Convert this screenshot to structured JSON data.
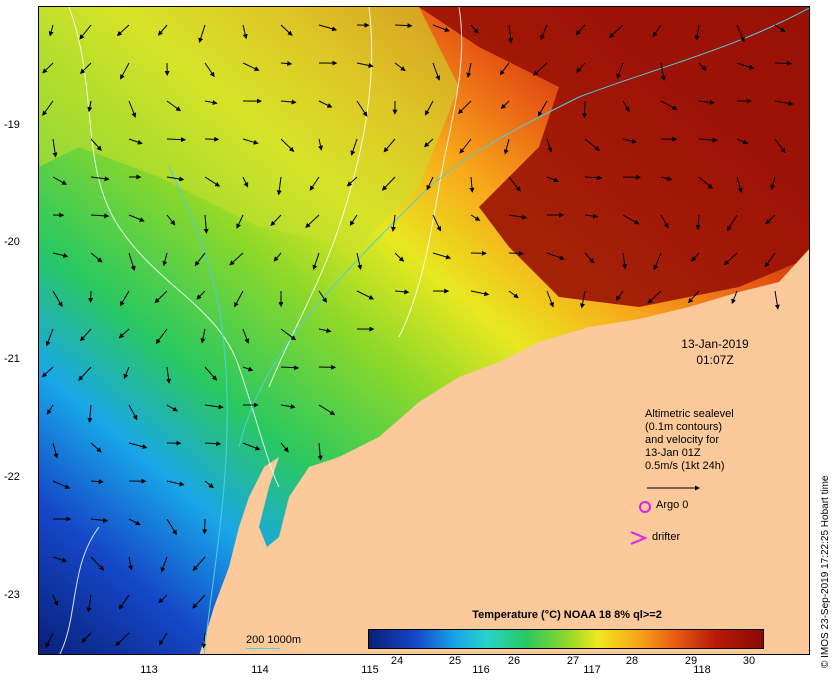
{
  "map": {
    "date": "13-Jan-2019",
    "time": "01:07Z",
    "lat_ticks": [
      "-19",
      "-20",
      "-21",
      "-22",
      "-23"
    ],
    "lon_ticks": [
      "113",
      "114",
      "115",
      "116",
      "117",
      "118"
    ],
    "sealevel_note": [
      "Altimetric sealevel",
      "(0.1m contours)",
      "and velocity for",
      "13-Jan 01Z",
      "0.5m/s (1kt 24h)"
    ],
    "argo_label": "Argo 0",
    "drifter_label": "drifter",
    "contour_key": "200  1000m",
    "colorbar_title": "Temperature (°C) NOAA 18 8% ql>=2",
    "colorbar_ticks": [
      "24",
      "25",
      "26",
      "27",
      "28",
      "29",
      "30"
    ],
    "credit": "© IMOS 23-Sep-2019 17:22:25 Hobart time",
    "colors": {
      "land": "#fbc99a",
      "cold": "#0a1f7a",
      "warm": "#8a0a04",
      "argo": "#e020e0",
      "contour": "#4ad0e0"
    }
  }
}
